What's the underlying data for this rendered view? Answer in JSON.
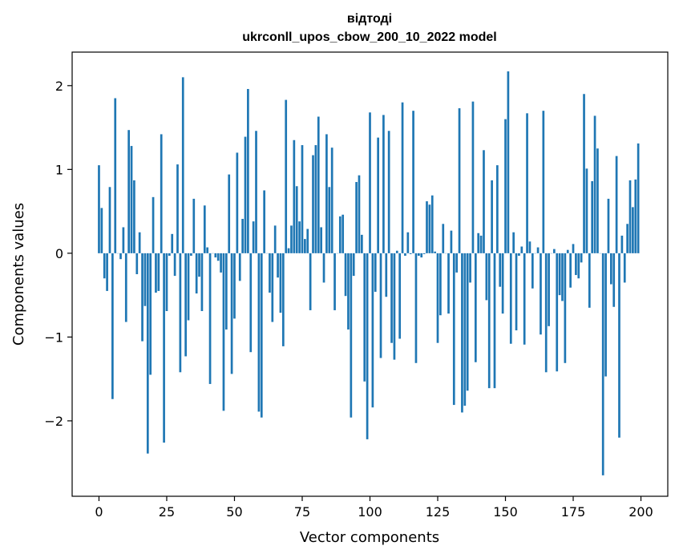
{
  "chart_data": {
    "type": "bar",
    "title": "відтоді",
    "subtitle": "ukrconll_upos_cbow_200_10_2022 model",
    "xlabel": "Vector components",
    "ylabel": "Components values",
    "xlim": [
      -9.9,
      209.9
    ],
    "ylim": [
      -2.9,
      2.4
    ],
    "xticks": [
      0,
      25,
      50,
      75,
      100,
      125,
      150,
      175,
      200
    ],
    "xtick_labels": [
      "0",
      "25",
      "50",
      "75",
      "100",
      "125",
      "150",
      "175",
      "200"
    ],
    "yticks": [
      -2,
      -1,
      0,
      1,
      2
    ],
    "ytick_labels": [
      "−2",
      "−1",
      "0",
      "1",
      "2"
    ],
    "grid": false,
    "bar_color": "#1f77b4",
    "x": [
      0,
      1,
      2,
      3,
      4,
      5,
      6,
      7,
      8,
      9,
      10,
      11,
      12,
      13,
      14,
      15,
      16,
      17,
      18,
      19,
      20,
      21,
      22,
      23,
      24,
      25,
      26,
      27,
      28,
      29,
      30,
      31,
      32,
      33,
      34,
      35,
      36,
      37,
      38,
      39,
      40,
      41,
      42,
      43,
      44,
      45,
      46,
      47,
      48,
      49,
      50,
      51,
      52,
      53,
      54,
      55,
      56,
      57,
      58,
      59,
      60,
      61,
      62,
      63,
      64,
      65,
      66,
      67,
      68,
      69,
      70,
      71,
      72,
      73,
      74,
      75,
      76,
      77,
      78,
      79,
      80,
      81,
      82,
      83,
      84,
      85,
      86,
      87,
      88,
      89,
      90,
      91,
      92,
      93,
      94,
      95,
      96,
      97,
      98,
      99,
      100,
      101,
      102,
      103,
      104,
      105,
      106,
      107,
      108,
      109,
      110,
      111,
      112,
      113,
      114,
      115,
      116,
      117,
      118,
      119,
      120,
      121,
      122,
      123,
      124,
      125,
      126,
      127,
      128,
      129,
      130,
      131,
      132,
      133,
      134,
      135,
      136,
      137,
      138,
      139,
      140,
      141,
      142,
      143,
      144,
      145,
      146,
      147,
      148,
      149,
      150,
      151,
      152,
      153,
      154,
      155,
      156,
      157,
      158,
      159,
      160,
      161,
      162,
      163,
      164,
      165,
      166,
      167,
      168,
      169,
      170,
      171,
      172,
      173,
      174,
      175,
      176,
      177,
      178,
      179,
      180,
      181,
      182,
      183,
      184,
      185,
      186,
      187,
      188,
      189,
      190,
      191,
      192,
      193,
      194,
      195,
      196,
      197,
      198,
      199
    ],
    "values": [
      1.05,
      0.54,
      -0.3,
      -0.45,
      0.79,
      -1.74,
      1.85,
      0.0,
      -0.07,
      0.31,
      -0.82,
      1.47,
      1.28,
      0.87,
      -0.25,
      0.25,
      -1.05,
      -0.63,
      -2.39,
      -1.45,
      0.67,
      -0.47,
      -0.45,
      1.42,
      -2.26,
      -0.69,
      -0.03,
      0.23,
      -0.27,
      1.06,
      -1.42,
      2.1,
      -1.23,
      -0.8,
      -0.03,
      0.65,
      -0.48,
      -0.28,
      -0.69,
      0.57,
      0.07,
      -1.56,
      0.0,
      -0.05,
      -0.09,
      -0.23,
      -1.88,
      -0.91,
      0.94,
      -1.44,
      -0.78,
      1.2,
      -0.33,
      0.41,
      1.39,
      1.96,
      -1.18,
      0.38,
      1.46,
      -1.89,
      -1.96,
      0.75,
      0.0,
      -0.47,
      -0.82,
      0.33,
      -0.29,
      -0.71,
      -1.11,
      1.83,
      0.06,
      0.33,
      1.35,
      0.8,
      0.38,
      1.29,
      0.17,
      0.29,
      -0.68,
      1.17,
      1.29,
      1.63,
      0.31,
      -0.35,
      1.42,
      0.79,
      1.26,
      -0.68,
      0.0,
      0.44,
      0.46,
      -0.51,
      -0.91,
      -1.96,
      -0.27,
      0.85,
      0.93,
      0.22,
      -1.53,
      -2.22,
      1.68,
      -1.84,
      -0.46,
      1.38,
      -1.25,
      1.65,
      -0.52,
      1.46,
      -1.07,
      -1.27,
      0.03,
      -1.02,
      1.8,
      -0.03,
      0.25,
      -0.01,
      1.7,
      -1.31,
      -0.03,
      -0.05,
      -0.01,
      0.62,
      0.58,
      0.69,
      0.02,
      -1.07,
      -0.74,
      0.35,
      0.0,
      -0.72,
      0.27,
      -1.81,
      -0.23,
      1.73,
      -1.9,
      -1.82,
      -1.64,
      -0.35,
      1.81,
      -1.3,
      0.24,
      0.21,
      1.23,
      -0.56,
      -1.61,
      0.87,
      -1.61,
      1.05,
      -0.4,
      -0.72,
      1.6,
      2.17,
      -1.08,
      0.25,
      -0.92,
      -0.03,
      0.08,
      -1.09,
      1.67,
      0.14,
      -0.42,
      0.0,
      0.07,
      -0.97,
      1.7,
      -1.42,
      -0.87,
      0.0,
      0.05,
      -1.41,
      -0.5,
      -0.57,
      -1.31,
      0.04,
      -0.41,
      0.11,
      -0.26,
      -0.3,
      -0.11,
      1.9,
      1.01,
      -0.65,
      0.86,
      1.64,
      1.25,
      0.0,
      -2.65,
      -1.47,
      0.65,
      -0.37,
      -0.64,
      1.16,
      -2.2,
      0.21,
      -0.35,
      0.35,
      0.87,
      0.55,
      0.88,
      1.31
    ]
  }
}
